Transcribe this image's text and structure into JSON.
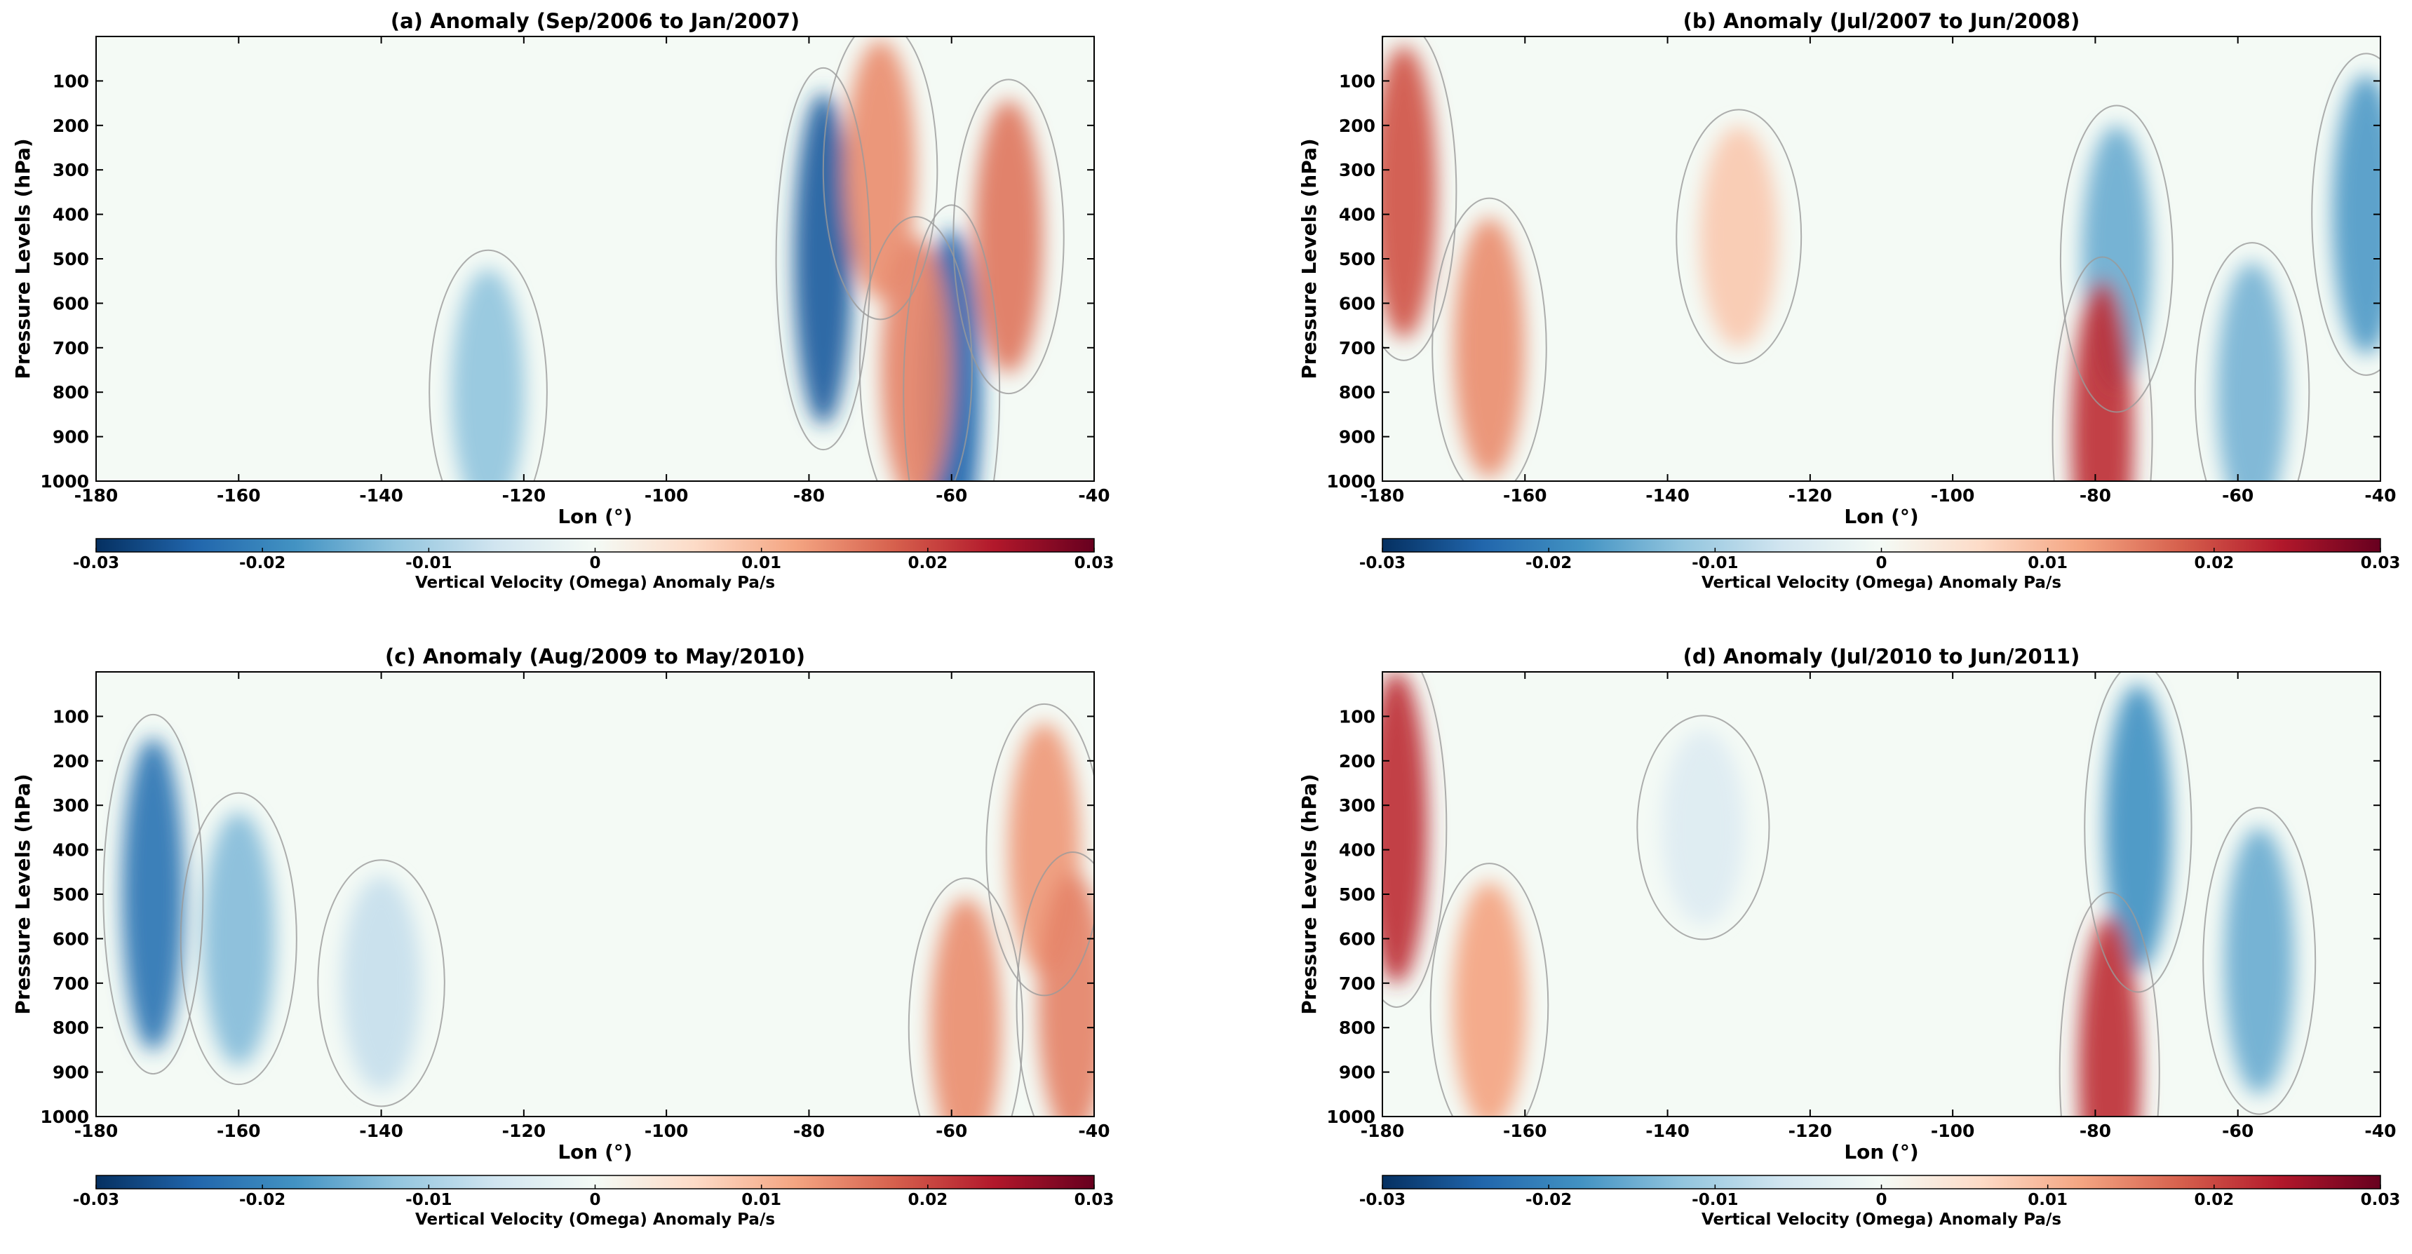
{
  "chart_data": [
    {
      "panel": "a",
      "type": "heatmap",
      "title": "(a) Anomaly (Sep/2006 to Jan/2007)",
      "xlabel": "Lon (°)",
      "ylabel": "Pressure Levels (hPa)",
      "xlim": [
        -180,
        -40
      ],
      "ylim": [
        1000,
        0
      ],
      "xticks": [
        -180,
        -160,
        -140,
        -120,
        -100,
        -80,
        -60,
        -40
      ],
      "xtick_labels": [
        "-180",
        "-160",
        "-140",
        "-120",
        "-100",
        "-80",
        "-60",
        "-40"
      ],
      "yticks": [
        100,
        200,
        300,
        400,
        500,
        600,
        700,
        800,
        900,
        1000
      ],
      "ytick_labels": [
        "100",
        "200",
        "300",
        "400",
        "500",
        "600",
        "700",
        "800",
        "900",
        "1000"
      ],
      "colorbar": {
        "label": "Vertical Velocity (Omega) Anomaly Pa/s",
        "range": [
          -0.03,
          0.03
        ],
        "ticks": [
          -0.03,
          -0.02,
          -0.01,
          0,
          0.01,
          0.02,
          0.03
        ],
        "tick_labels": [
          "-0.03",
          "-0.02",
          "-0.01",
          "0",
          "0.01",
          "0.02",
          "0.03"
        ]
      },
      "features": [
        {
          "lon": -125,
          "p": 800,
          "value": -0.012
        },
        {
          "lon": -78,
          "p": 500,
          "value": -0.025
        },
        {
          "lon": -60,
          "p": 800,
          "value": -0.024
        },
        {
          "lon": -70,
          "p": 300,
          "value": 0.014
        },
        {
          "lon": -65,
          "p": 750,
          "value": 0.015
        },
        {
          "lon": -52,
          "p": 450,
          "value": 0.016
        }
      ]
    },
    {
      "panel": "b",
      "type": "heatmap",
      "title": "(b) Anomaly (Jul/2007 to Jun/2008)",
      "xlabel": "Lon (°)",
      "ylabel": "Pressure Levels (hPa)",
      "xlim": [
        -180,
        -40
      ],
      "ylim": [
        1000,
        0
      ],
      "xticks": [
        -180,
        -160,
        -140,
        -120,
        -100,
        -80,
        -60,
        -40
      ],
      "xtick_labels": [
        "-180",
        "-160",
        "-140",
        "-120",
        "-100",
        "-80",
        "-60",
        "-40"
      ],
      "yticks": [
        100,
        200,
        300,
        400,
        500,
        600,
        700,
        800,
        900,
        1000
      ],
      "ytick_labels": [
        "100",
        "200",
        "300",
        "400",
        "500",
        "600",
        "700",
        "800",
        "900",
        "1000"
      ],
      "colorbar": {
        "label": "Vertical Velocity (Omega) Anomaly Pa/s",
        "range": [
          -0.03,
          0.03
        ],
        "ticks": [
          -0.03,
          -0.02,
          -0.01,
          0,
          0.01,
          0.02,
          0.03
        ],
        "tick_labels": [
          "-0.03",
          "-0.02",
          "-0.01",
          "0",
          "0.01",
          "0.02",
          "0.03"
        ]
      },
      "features": [
        {
          "lon": -177,
          "p": 350,
          "value": 0.019
        },
        {
          "lon": -165,
          "p": 700,
          "value": 0.014
        },
        {
          "lon": -130,
          "p": 450,
          "value": 0.008
        },
        {
          "lon": -77,
          "p": 500,
          "value": -0.015
        },
        {
          "lon": -79,
          "p": 900,
          "value": 0.022
        },
        {
          "lon": -58,
          "p": 800,
          "value": -0.014
        },
        {
          "lon": -42,
          "p": 400,
          "value": -0.017
        }
      ]
    },
    {
      "panel": "c",
      "type": "heatmap",
      "title": "(c) Anomaly (Aug/2009 to May/2010)",
      "xlabel": "Lon (°)",
      "ylabel": "Pressure Levels (hPa)",
      "xlim": [
        -180,
        -40
      ],
      "ylim": [
        1000,
        0
      ],
      "xticks": [
        -180,
        -160,
        -140,
        -120,
        -100,
        -80,
        -60,
        -40
      ],
      "xtick_labels": [
        "-180",
        "-160",
        "-140",
        "-120",
        "-100",
        "-80",
        "-60",
        "-40"
      ],
      "yticks": [
        100,
        200,
        300,
        400,
        500,
        600,
        700,
        800,
        900,
        1000
      ],
      "ytick_labels": [
        "100",
        "200",
        "300",
        "400",
        "500",
        "600",
        "700",
        "800",
        "900",
        "1000"
      ],
      "colorbar": {
        "label": "Vertical Velocity (Omega) Anomaly Pa/s",
        "range": [
          -0.03,
          0.03
        ],
        "ticks": [
          -0.03,
          -0.02,
          -0.01,
          0,
          0.01,
          0.02,
          0.03
        ],
        "tick_labels": [
          "-0.03",
          "-0.02",
          "-0.01",
          "0",
          "0.01",
          "0.02",
          "0.03"
        ]
      },
      "features": [
        {
          "lon": -172,
          "p": 500,
          "value": -0.022
        },
        {
          "lon": -160,
          "p": 600,
          "value": -0.013
        },
        {
          "lon": -140,
          "p": 700,
          "value": -0.007
        },
        {
          "lon": -58,
          "p": 800,
          "value": 0.014
        },
        {
          "lon": -47,
          "p": 400,
          "value": 0.013
        },
        {
          "lon": -43,
          "p": 750,
          "value": 0.015
        }
      ]
    },
    {
      "panel": "d",
      "type": "heatmap",
      "title": "(d) Anomaly (Jul/2010 to Jun/2011)",
      "xlabel": "Lon (°)",
      "ylabel": "Pressure Levels (hPa)",
      "xlim": [
        -180,
        -40
      ],
      "ylim": [
        1000,
        0
      ],
      "xticks": [
        -180,
        -160,
        -140,
        -120,
        -100,
        -80,
        -60,
        -40
      ],
      "xtick_labels": [
        "-180",
        "-160",
        "-140",
        "-120",
        "-100",
        "-80",
        "-60",
        "-40"
      ],
      "yticks": [
        100,
        200,
        300,
        400,
        500,
        600,
        700,
        800,
        900,
        1000
      ],
      "ytick_labels": [
        "100",
        "200",
        "300",
        "400",
        "500",
        "600",
        "700",
        "800",
        "900",
        "1000"
      ],
      "colorbar": {
        "label": "Vertical Velocity (Omega) Anomaly Pa/s",
        "range": [
          -0.03,
          0.03
        ],
        "ticks": [
          -0.03,
          -0.02,
          -0.01,
          0,
          0.01,
          0.02,
          0.03
        ],
        "tick_labels": [
          "-0.03",
          "-0.02",
          "-0.01",
          "0",
          "0.01",
          "0.02",
          "0.03"
        ]
      },
      "features": [
        {
          "lon": -178,
          "p": 350,
          "value": 0.022
        },
        {
          "lon": -165,
          "p": 750,
          "value": 0.012
        },
        {
          "lon": -135,
          "p": 350,
          "value": -0.004
        },
        {
          "lon": -74,
          "p": 350,
          "value": -0.018
        },
        {
          "lon": -78,
          "p": 900,
          "value": 0.022
        },
        {
          "lon": -57,
          "p": 650,
          "value": -0.015
        }
      ]
    }
  ],
  "colormap": [
    "#053061",
    "#2166ac",
    "#4393c3",
    "#92c5de",
    "#d1e5f0",
    "#f4faf5",
    "#fddbc7",
    "#f4a582",
    "#d6604d",
    "#b2182b",
    "#67001f"
  ],
  "contour_color": "#9a9a9a"
}
